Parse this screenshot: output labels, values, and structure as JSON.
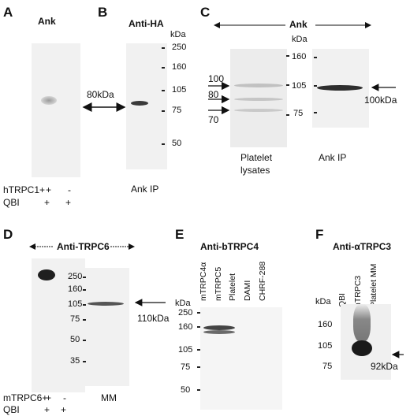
{
  "panels": {
    "A": {
      "letter": "A",
      "title": "Ank",
      "rows": [
        {
          "label": "hTRPC1+",
          "values": [
            "+",
            "-"
          ]
        },
        {
          "label": "QBI",
          "values": [
            "+",
            "+"
          ]
        }
      ]
    },
    "B": {
      "letter": "B",
      "title": "Anti-HA",
      "kda": "kDa",
      "markers": [
        "250",
        "160",
        "105",
        "75",
        "50"
      ],
      "band_label": "80kDa",
      "lane_label": "Ank IP"
    },
    "C": {
      "letter": "C",
      "title": "Ank",
      "kda": "kDa",
      "markers": [
        "160",
        "105",
        "75"
      ],
      "left_markers": [
        "100",
        "80",
        "70"
      ],
      "band_label": "100kDa",
      "lane1": "Platelet",
      "lane1b": "lysates",
      "lane2": "Ank IP"
    },
    "D": {
      "letter": "D",
      "title": "Anti-TRPC6",
      "markers": [
        "250",
        "160",
        "105",
        "75",
        "50",
        "35"
      ],
      "band_label": "110kDa",
      "lane_label": "MM",
      "rows": [
        {
          "label": "mTRPC6+",
          "values": [
            "+",
            "-"
          ]
        },
        {
          "label": "QBI",
          "values": [
            "+",
            "+"
          ]
        }
      ]
    },
    "E": {
      "letter": "E",
      "title": "Anti-bTRPC4",
      "kda": "kDa",
      "markers": [
        "250",
        "160",
        "105",
        "75",
        "50"
      ],
      "lanes": [
        "mTRPC4α",
        "mTRPC5",
        "Platelet",
        "DAMI",
        "CHRF-288"
      ]
    },
    "F": {
      "letter": "F",
      "title": "Anti-αTRPC3",
      "kda": "kDa",
      "markers": [
        "160",
        "105",
        "75"
      ],
      "lanes": [
        "QBI",
        "hTRPC3",
        "Platelet MM"
      ],
      "band_label": "92kDa"
    }
  }
}
